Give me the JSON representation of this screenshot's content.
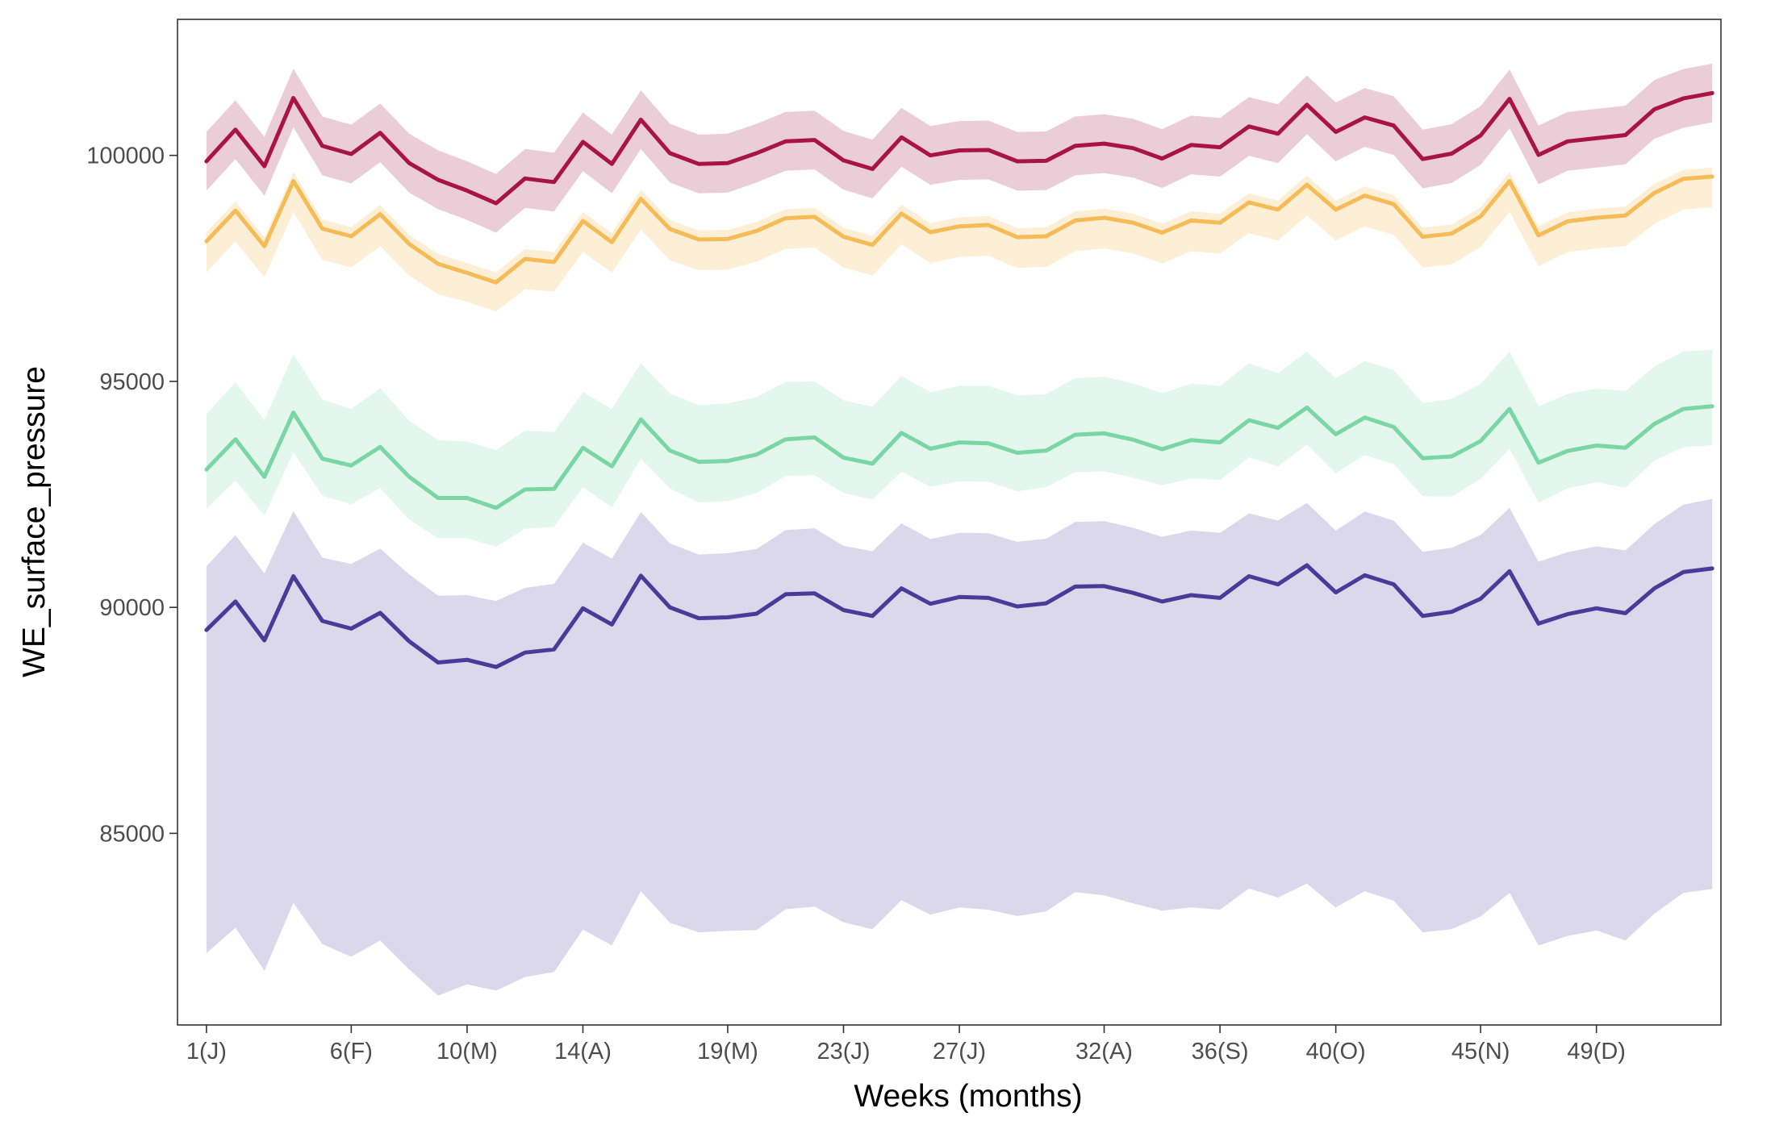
{
  "chart_data": {
    "type": "area",
    "title": "",
    "xlabel": "Weeks (months)",
    "ylabel": "WE_surface_pressure",
    "xlim": [
      0,
      53.3
    ],
    "ylim": [
      80760,
      103010
    ],
    "grid": false,
    "legend": "none",
    "x_ticks": [
      {
        "value": 1,
        "label": "1(J)"
      },
      {
        "value": 6,
        "label": "6(F)"
      },
      {
        "value": 10,
        "label": "10(M)"
      },
      {
        "value": 14,
        "label": "14(A)"
      },
      {
        "value": 19,
        "label": "19(M)"
      },
      {
        "value": 23,
        "label": "23(J)"
      },
      {
        "value": 27,
        "label": "27(J)"
      },
      {
        "value": 32,
        "label": "32(A)"
      },
      {
        "value": 36,
        "label": "36(S)"
      },
      {
        "value": 40,
        "label": "40(O)"
      },
      {
        "value": 45,
        "label": "45(N)"
      },
      {
        "value": 49,
        "label": "49(D)"
      }
    ],
    "y_ticks": [
      {
        "value": 85000,
        "label": "85000"
      },
      {
        "value": 90000,
        "label": "90000"
      },
      {
        "value": 95000,
        "label": "95000"
      },
      {
        "value": 100000,
        "label": "100000"
      }
    ],
    "x": [
      1,
      2,
      3,
      4,
      5,
      6,
      7,
      8,
      9,
      10,
      11,
      12,
      13,
      14,
      15,
      16,
      17,
      18,
      19,
      20,
      21,
      22,
      23,
      24,
      25,
      26,
      27,
      28,
      29,
      30,
      31,
      32,
      33,
      34,
      35,
      36,
      37,
      38,
      39,
      40,
      41,
      42,
      43,
      44,
      45,
      46,
      47,
      48,
      49,
      50,
      51,
      52,
      53
    ],
    "series": [
      {
        "color": "#4b3b98",
        "fill": "#d3cee6",
        "mean": [
          89500,
          90130,
          89270,
          90690,
          89700,
          89530,
          89880,
          89250,
          88780,
          88840,
          88680,
          89000,
          89070,
          89980,
          89620,
          90700,
          90000,
          89760,
          89780,
          89860,
          90290,
          90310,
          89940,
          89810,
          90420,
          90080,
          90230,
          90210,
          90020,
          90090,
          90460,
          90470,
          90320,
          90130,
          90270,
          90210,
          90690,
          90510,
          90930,
          90330,
          90710,
          90510,
          89810,
          89900,
          90190,
          90800,
          89640,
          89850,
          89980,
          89870,
          90420,
          90780,
          90860
        ],
        "lower": [
          82350,
          82910,
          81960,
          83460,
          82550,
          82270,
          82630,
          81990,
          81410,
          81660,
          81520,
          81820,
          81930,
          82870,
          82520,
          83720,
          83020,
          82810,
          82840,
          82860,
          83320,
          83380,
          83030,
          82880,
          83520,
          83200,
          83360,
          83310,
          83170,
          83270,
          83700,
          83630,
          83450,
          83290,
          83360,
          83310,
          83780,
          83580,
          83890,
          83360,
          83720,
          83510,
          82810,
          82880,
          83160,
          83680,
          82520,
          82730,
          82850,
          82630,
          83220,
          83680,
          83770
        ],
        "upper": [
          90910,
          91600,
          90750,
          92130,
          91100,
          90960,
          91300,
          90730,
          90260,
          90270,
          90140,
          90430,
          90520,
          91430,
          91080,
          92110,
          91420,
          91170,
          91200,
          91290,
          91710,
          91750,
          91360,
          91240,
          91860,
          91510,
          91650,
          91640,
          91450,
          91520,
          91890,
          91910,
          91760,
          91560,
          91700,
          91650,
          92080,
          91920,
          92310,
          91700,
          92120,
          91920,
          91230,
          91320,
          91600,
          92200,
          91010,
          91220,
          91350,
          91260,
          91840,
          92270,
          92400
        ]
      },
      {
        "color": "#7ad6a4",
        "fill": "#dcf5e9",
        "mean": [
          93050,
          93720,
          92890,
          94310,
          93290,
          93140,
          93550,
          92890,
          92420,
          92420,
          92200,
          92610,
          92620,
          93530,
          93120,
          94160,
          93470,
          93220,
          93240,
          93380,
          93720,
          93760,
          93310,
          93180,
          93860,
          93510,
          93650,
          93630,
          93420,
          93470,
          93820,
          93850,
          93710,
          93500,
          93700,
          93650,
          94140,
          93970,
          94420,
          93830,
          94200,
          93990,
          93300,
          93340,
          93680,
          94390,
          93200,
          93460,
          93580,
          93530,
          94060,
          94390,
          94450
        ],
        "lower": [
          92180,
          92810,
          92030,
          93430,
          92470,
          92280,
          92640,
          91940,
          91530,
          91530,
          91340,
          91740,
          91780,
          92660,
          92210,
          93290,
          92630,
          92320,
          92350,
          92530,
          92910,
          92920,
          92530,
          92390,
          93000,
          92670,
          92790,
          92780,
          92570,
          92660,
          92990,
          93010,
          92870,
          92700,
          92850,
          92820,
          93320,
          93120,
          93600,
          92970,
          93370,
          93170,
          92460,
          92450,
          92840,
          93510,
          92310,
          92630,
          92770,
          92650,
          93250,
          93540,
          93590
        ],
        "upper": [
          94280,
          94980,
          94140,
          95600,
          94600,
          94390,
          94850,
          94130,
          93700,
          93670,
          93480,
          93910,
          93880,
          94760,
          94390,
          95400,
          94730,
          94480,
          94510,
          94650,
          94990,
          95000,
          94580,
          94440,
          95120,
          94760,
          94900,
          94900,
          94690,
          94720,
          95070,
          95100,
          94960,
          94740,
          94950,
          94900,
          95400,
          95180,
          95660,
          95070,
          95450,
          95250,
          94520,
          94610,
          94940,
          95660,
          94450,
          94720,
          94840,
          94790,
          95330,
          95660,
          95700
        ]
      },
      {
        "color": "#f5bb57",
        "fill": "#fdebcc",
        "mean": [
          98100,
          98780,
          97990,
          99430,
          98380,
          98210,
          98700,
          98040,
          97600,
          97400,
          97190,
          97710,
          97640,
          98550,
          98080,
          99040,
          98370,
          98140,
          98150,
          98330,
          98610,
          98640,
          98200,
          98020,
          98710,
          98300,
          98430,
          98460,
          98190,
          98210,
          98560,
          98620,
          98510,
          98290,
          98560,
          98510,
          98960,
          98800,
          99350,
          98800,
          99110,
          98920,
          98200,
          98270,
          98650,
          99430,
          98230,
          98540,
          98620,
          98670,
          99170,
          99480,
          99530
        ],
        "lower": [
          97410,
          98100,
          97300,
          98750,
          97690,
          97520,
          97990,
          97340,
          96930,
          96760,
          96550,
          97040,
          96990,
          97860,
          97410,
          98360,
          97680,
          97460,
          97470,
          97650,
          97930,
          97960,
          97520,
          97340,
          98030,
          97620,
          97750,
          97780,
          97510,
          97530,
          97880,
          97940,
          97830,
          97610,
          97880,
          97830,
          98280,
          98120,
          98670,
          98120,
          98430,
          98240,
          97520,
          97590,
          97970,
          98750,
          97550,
          97860,
          97940,
          97990,
          98490,
          98800,
          98850
        ],
        "upper": [
          98300,
          98980,
          98190,
          99630,
          98580,
          98410,
          98900,
          98240,
          97820,
          97620,
          97410,
          97930,
          97860,
          98750,
          98280,
          99240,
          98570,
          98340,
          98350,
          98530,
          98810,
          98840,
          98400,
          98220,
          98910,
          98500,
          98630,
          98660,
          98390,
          98410,
          98760,
          98820,
          98710,
          98490,
          98760,
          98710,
          99160,
          99000,
          99550,
          99000,
          99310,
          99120,
          98400,
          98470,
          98850,
          99630,
          98430,
          98740,
          98820,
          98870,
          99370,
          99680,
          99730
        ]
      },
      {
        "color": "#a81543",
        "fill": "#e6c1cd",
        "mean": [
          99870,
          100570,
          99760,
          101270,
          100210,
          100030,
          100500,
          99830,
          99460,
          99220,
          98940,
          99490,
          99410,
          100300,
          99810,
          100790,
          100050,
          99810,
          99830,
          100050,
          100310,
          100340,
          99890,
          99700,
          100400,
          100000,
          100110,
          100120,
          99870,
          99880,
          100210,
          100260,
          100160,
          99930,
          100230,
          100180,
          100640,
          100480,
          101120,
          100520,
          100840,
          100660,
          99920,
          100040,
          100440,
          101250,
          100010,
          100310,
          100380,
          100450,
          101020,
          101260,
          101380
        ],
        "lower": [
          99220,
          99920,
          99110,
          100620,
          99560,
          99380,
          99850,
          99180,
          98810,
          98570,
          98290,
          98840,
          98760,
          99650,
          99160,
          100140,
          99400,
          99160,
          99180,
          99400,
          99660,
          99690,
          99240,
          99050,
          99750,
          99350,
          99460,
          99470,
          99220,
          99230,
          99560,
          99610,
          99510,
          99280,
          99580,
          99530,
          99990,
          99830,
          100470,
          99870,
          100190,
          100010,
          99270,
          99390,
          99790,
          100600,
          99360,
          99660,
          99730,
          99800,
          100370,
          100610,
          100730
        ],
        "upper": [
          100520,
          101220,
          100410,
          101920,
          100860,
          100680,
          101150,
          100480,
          100110,
          99870,
          99590,
          100140,
          100060,
          100950,
          100460,
          101440,
          100700,
          100460,
          100480,
          100700,
          100960,
          100990,
          100540,
          100350,
          101050,
          100650,
          100760,
          100770,
          100520,
          100530,
          100860,
          100910,
          100810,
          100580,
          100880,
          100830,
          101290,
          101130,
          101770,
          101170,
          101490,
          101310,
          100570,
          100690,
          101090,
          101900,
          100660,
          100960,
          101030,
          101100,
          101670,
          101910,
          102030
        ]
      }
    ]
  }
}
